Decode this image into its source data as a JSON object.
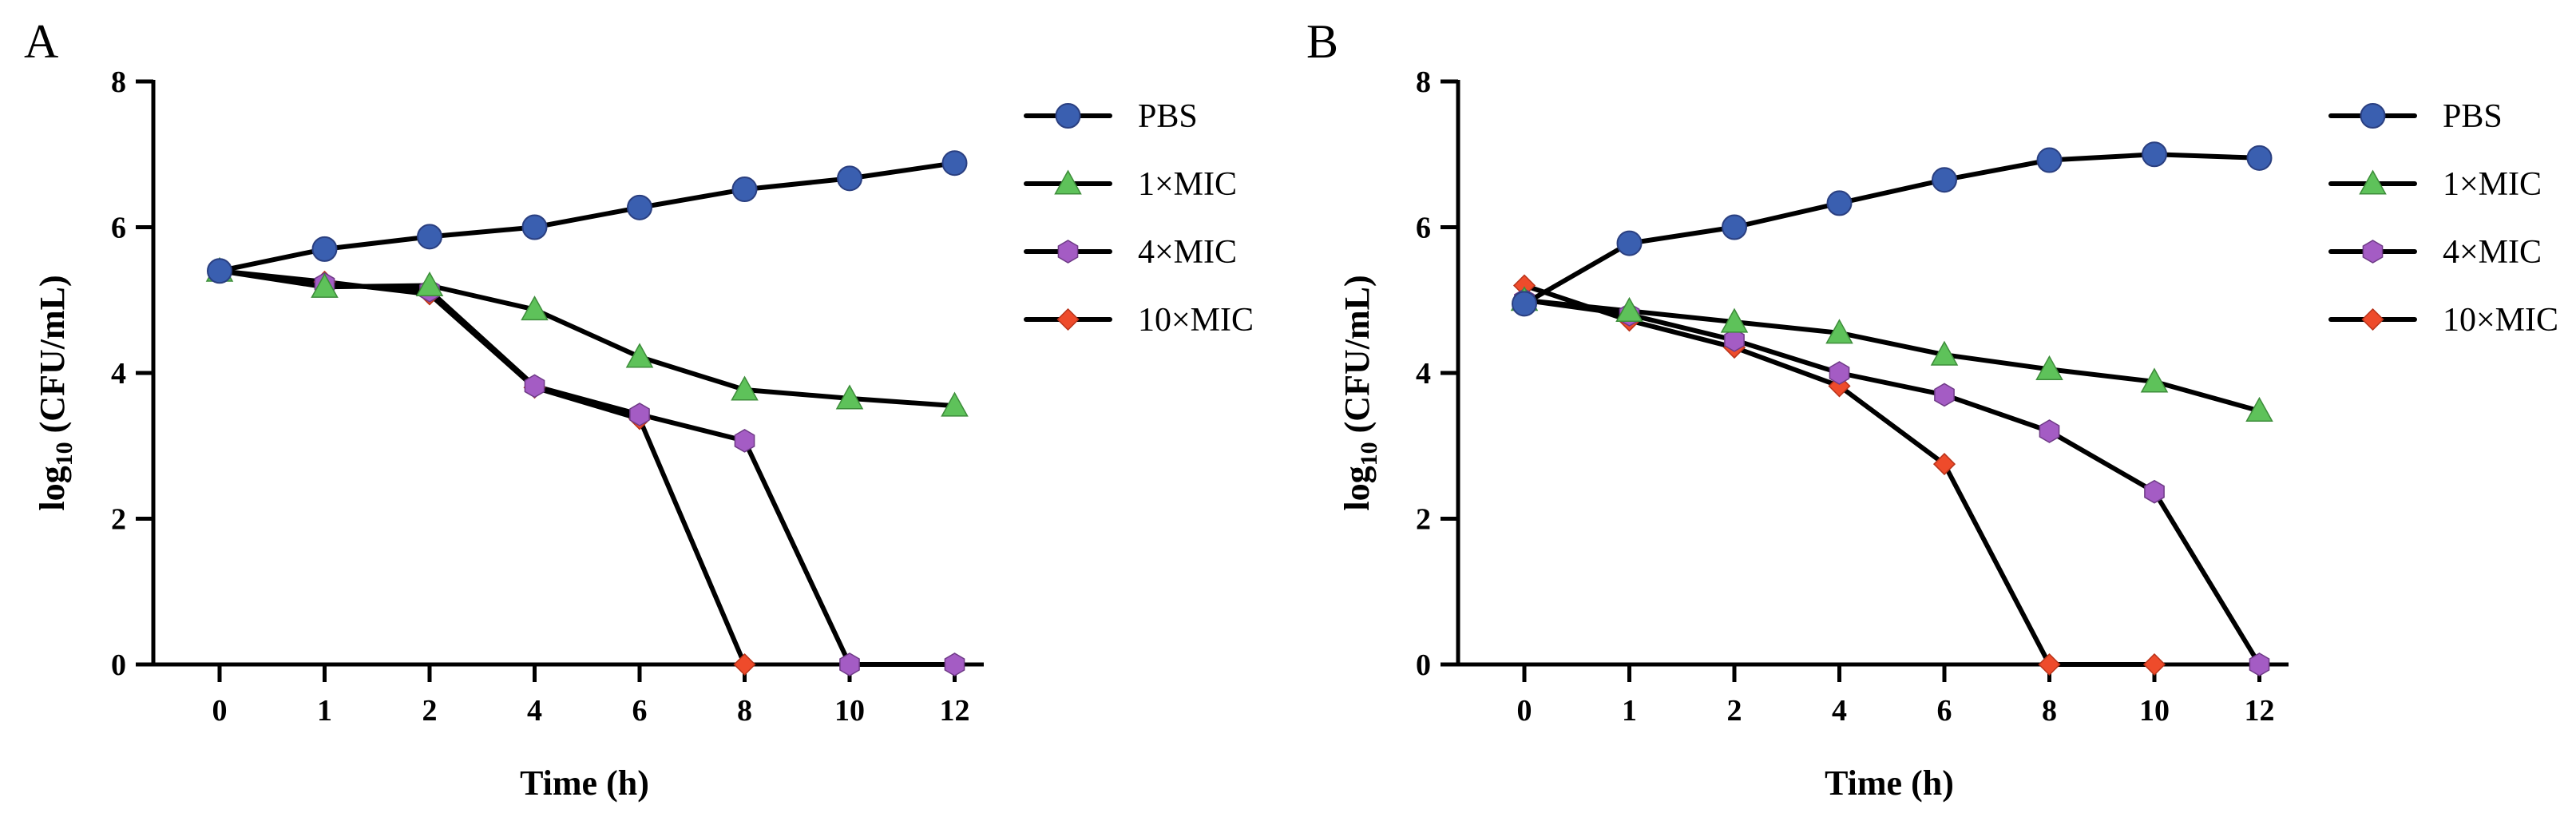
{
  "chart_data": [
    {
      "panel": "A",
      "type": "line",
      "title": "",
      "xlabel": "Time (h)",
      "ylabel_main": "log",
      "ylabel_sub": "10",
      "ylabel_rest": " (CFU/mL)",
      "x": [
        "0",
        "1",
        "2",
        "4",
        "6",
        "8",
        "10",
        "12"
      ],
      "yticks": [
        "0",
        "2",
        "4",
        "6",
        "8"
      ],
      "ylim": [
        0,
        8
      ],
      "series": [
        {
          "name": "PBS",
          "marker": "circle",
          "color": "#3a5fb0",
          "values": [
            5.4,
            5.7,
            5.87,
            6.0,
            6.27,
            6.52,
            6.67,
            6.88
          ]
        },
        {
          "name": "1×MIC",
          "marker": "triangle",
          "color": "#5ec25a",
          "values": [
            5.4,
            5.18,
            5.2,
            4.87,
            4.22,
            3.77,
            3.65,
            3.55
          ]
        },
        {
          "name": "4×MIC",
          "marker": "hexagon",
          "color": "#a45cc4",
          "values": [
            5.4,
            5.22,
            5.13,
            3.82,
            3.43,
            3.07,
            0,
            0
          ]
        },
        {
          "name": "10×MIC",
          "marker": "diamond",
          "color": "#ee4b2b",
          "values": [
            5.4,
            5.25,
            5.08,
            3.8,
            3.37,
            0,
            null,
            null
          ]
        }
      ]
    },
    {
      "panel": "B",
      "type": "line",
      "title": "",
      "xlabel": "Time (h)",
      "ylabel_main": "log",
      "ylabel_sub": "10",
      "ylabel_rest": " (CFU/mL)",
      "x": [
        "0",
        "1",
        "2",
        "4",
        "6",
        "8",
        "10",
        "12"
      ],
      "yticks": [
        "0",
        "2",
        "4",
        "6",
        "8"
      ],
      "ylim": [
        0,
        8
      ],
      "series": [
        {
          "name": "PBS",
          "marker": "circle",
          "color": "#3a5fb0",
          "values": [
            4.95,
            5.78,
            6.0,
            6.33,
            6.65,
            6.92,
            7.0,
            6.95
          ]
        },
        {
          "name": "1×MIC",
          "marker": "triangle",
          "color": "#5ec25a",
          "values": [
            5.0,
            4.85,
            4.7,
            4.55,
            4.25,
            4.05,
            3.88,
            3.48
          ]
        },
        {
          "name": "4×MIC",
          "marker": "hexagon",
          "color": "#a45cc4",
          "values": [
            5.0,
            4.8,
            4.45,
            4.0,
            3.7,
            3.2,
            2.37,
            0
          ]
        },
        {
          "name": "10×MIC",
          "marker": "diamond",
          "color": "#ee4b2b",
          "values": [
            5.2,
            4.72,
            4.35,
            3.82,
            2.75,
            0,
            0,
            null
          ]
        }
      ]
    }
  ]
}
